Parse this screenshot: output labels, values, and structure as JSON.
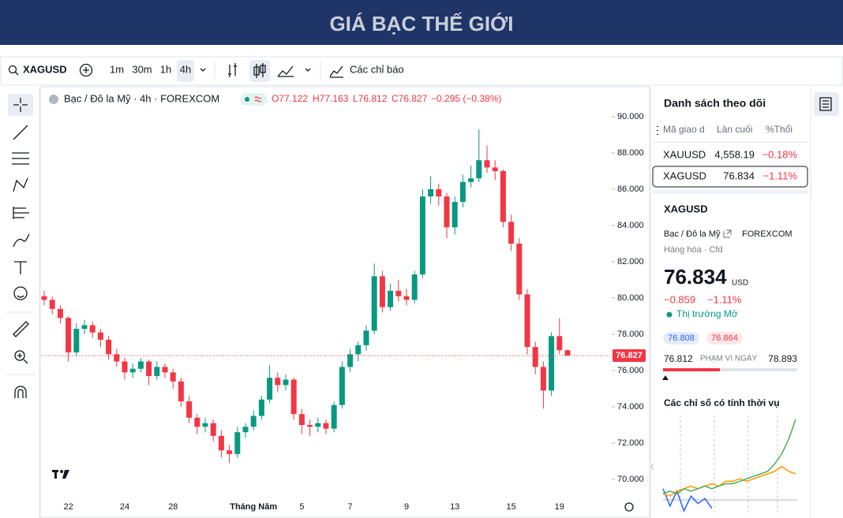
{
  "header": {
    "title": "GIÁ BẠC THẾ GIỚI"
  },
  "toolbar": {
    "symbol": "XAGUSD",
    "intervals": [
      "1m",
      "30m",
      "1h",
      "4h"
    ],
    "indicators": "Các chỉ báo"
  },
  "legend": {
    "name": "Bạc / Đô la Mỹ · 4h · FOREXCOM",
    "open": "O77.122",
    "high": "H77.163",
    "low": "L76.812",
    "close": "C76.827",
    "change": "−0.295 (−0.38%)"
  },
  "chart_data": [
    {
      "type": "candlestick",
      "categories": [
        null,
        null,
        null,
        "22",
        null,
        null,
        null,
        null,
        null,
        null,
        "24",
        null,
        null,
        null,
        null,
        null,
        "28",
        null,
        null,
        null,
        null,
        null,
        null,
        null,
        null,
        null,
        "Tháng Năm",
        null,
        null,
        null,
        null,
        null,
        "5",
        null,
        null,
        null,
        null,
        null,
        "7",
        null,
        null,
        null,
        null,
        null,
        null,
        "9",
        null,
        null,
        null,
        null,
        null,
        "13",
        null,
        null,
        null,
        null,
        null,
        null,
        "15",
        null,
        null,
        null,
        null,
        null,
        "19",
        null
      ],
      "open": [
        80.1,
        79.9,
        79.4,
        78.9,
        77.0,
        78.3,
        78.5,
        78.1,
        77.7,
        76.9,
        76.5,
        75.9,
        76.1,
        76.5,
        75.7,
        76.2,
        75.9,
        75.4,
        74.3,
        73.4,
        72.9,
        73.1,
        72.4,
        71.6,
        71.4,
        72.6,
        72.9,
        73.5,
        74.4,
        75.6,
        75.2,
        75.5,
        73.6,
        73.0,
        72.9,
        73.1,
        72.8,
        74.1,
        76.2,
        76.9,
        77.4,
        78.2,
        81.2,
        79.5,
        80.4,
        80.1,
        79.9,
        81.3,
        85.6,
        86.0,
        85.6,
        83.9,
        85.3,
        86.4,
        86.6,
        87.6,
        87.2,
        87.0,
        84.2,
        83.0,
        80.2,
        77.3,
        76.2,
        74.9,
        77.9,
        77.122
      ],
      "high": [
        80.4,
        80.1,
        79.6,
        79.0,
        78.6,
        78.8,
        78.7,
        78.3,
        77.9,
        77.2,
        76.7,
        76.4,
        76.7,
        76.6,
        76.5,
        76.4,
        76.1,
        75.6,
        74.6,
        73.6,
        73.4,
        73.3,
        72.7,
        71.9,
        72.9,
        73.1,
        73.8,
        74.6,
        76.3,
        75.9,
        75.8,
        75.6,
        73.9,
        73.3,
        73.4,
        73.3,
        74.3,
        76.5,
        77.2,
        77.6,
        78.5,
        81.9,
        81.5,
        80.8,
        81.0,
        80.5,
        81.5,
        86.0,
        86.7,
        86.3,
        85.8,
        85.6,
        86.8,
        87.3,
        89.3,
        88.4,
        87.6,
        87.1,
        84.6,
        83.3,
        80.5,
        77.6,
        76.5,
        78.1,
        78.9,
        77.163
      ],
      "low": [
        79.6,
        79.1,
        78.6,
        76.5,
        76.8,
        78.0,
        77.8,
        77.3,
        76.6,
        76.2,
        75.5,
        75.6,
        75.9,
        75.2,
        75.5,
        75.6,
        75.0,
        74.0,
        73.1,
        72.5,
        72.6,
        72.1,
        71.2,
        70.9,
        71.2,
        72.3,
        72.7,
        73.3,
        74.2,
        74.8,
        74.9,
        73.3,
        72.5,
        72.4,
        72.6,
        72.5,
        72.6,
        73.9,
        75.9,
        76.5,
        77.1,
        78.0,
        79.2,
        79.3,
        79.8,
        79.6,
        79.7,
        81.1,
        85.2,
        85.1,
        83.3,
        83.5,
        85.0,
        86.1,
        86.4,
        86.9,
        86.5,
        83.9,
        82.6,
        79.9,
        76.9,
        75.8,
        73.9,
        74.6,
        76.9,
        76.812
      ],
      "close": [
        79.9,
        79.4,
        78.9,
        77.0,
        78.3,
        78.5,
        78.1,
        77.7,
        76.9,
        76.5,
        75.9,
        76.1,
        76.5,
        75.7,
        76.2,
        75.9,
        75.4,
        74.3,
        73.4,
        72.9,
        73.1,
        72.4,
        71.6,
        71.4,
        72.6,
        72.9,
        73.5,
        74.4,
        75.6,
        75.2,
        75.5,
        73.6,
        73.0,
        72.9,
        73.1,
        72.8,
        74.1,
        76.2,
        76.9,
        77.4,
        78.2,
        81.2,
        79.5,
        80.4,
        80.1,
        79.9,
        81.3,
        85.6,
        86.0,
        85.6,
        83.9,
        85.3,
        86.4,
        86.6,
        87.6,
        87.2,
        87.0,
        84.2,
        83.0,
        80.2,
        77.3,
        76.2,
        74.9,
        77.9,
        77.122,
        76.827
      ],
      "up_color": "#089981",
      "down_color": "#f23645",
      "ylim": [
        69,
        91.5
      ],
      "yticks": [
        {
          "value": 70,
          "label": "70.000"
        },
        {
          "value": 72,
          "label": "72.000"
        },
        {
          "value": 74,
          "label": "74.000"
        },
        {
          "value": 76,
          "label": "76.000"
        },
        {
          "value": 78,
          "label": "78.000"
        },
        {
          "value": 80,
          "label": "80.000"
        },
        {
          "value": 82,
          "label": "82.000"
        },
        {
          "value": 84,
          "label": "84.000"
        },
        {
          "value": 86,
          "label": "86.000"
        },
        {
          "value": 88,
          "label": "88.000"
        },
        {
          "value": 90,
          "label": "90.000"
        }
      ],
      "last_price": 76.827,
      "grid": false
    },
    {
      "type": "line",
      "series": [
        {
          "color": "#2962ff",
          "values": [
            2,
            -5,
            1,
            -7,
            -1,
            -4,
            -2,
            -6,
            null,
            null,
            null,
            null,
            null,
            null,
            null,
            null,
            null,
            null,
            null,
            null
          ]
        },
        {
          "color": "#ff9800",
          "values": [
            0,
            -1,
            1,
            2,
            3,
            2,
            3,
            4,
            3,
            5,
            5,
            6,
            5,
            6,
            7,
            8,
            9,
            11,
            9,
            8
          ]
        },
        {
          "color": "#4caf50",
          "values": [
            0,
            1,
            0,
            2,
            1,
            2,
            3,
            2,
            3,
            4,
            4,
            5,
            6,
            7,
            8,
            9,
            12,
            16,
            22,
            30
          ]
        }
      ]
    }
  ],
  "watchlist": {
    "title": "Danh sách theo dõi",
    "columns": [
      "Mã giao d",
      "Lần cuối",
      "%Thổi"
    ],
    "rows": [
      [
        "XAUUSD",
        "4,558.19",
        "−0.18%"
      ],
      [
        "XAGUSD",
        "76.834",
        "−1.11%"
      ]
    ]
  },
  "details": {
    "symbol": "XAGUSD",
    "name": "Bạc / Đô la Mỹ",
    "exchange": "FOREXCOM",
    "category": "Hàng hóa · Cfd",
    "price": "76.834",
    "currency": "USD",
    "change": "−0.859",
    "change_percent": "−1.11%",
    "status": "Thị trường Mở",
    "bid": "76.808",
    "ask": "76.864",
    "range_low": "76.812",
    "range_label": "PHẠM VI NGÀY",
    "range_high": "78.893",
    "seasonal_title": "Các chỉ số có tính thời vụ"
  }
}
